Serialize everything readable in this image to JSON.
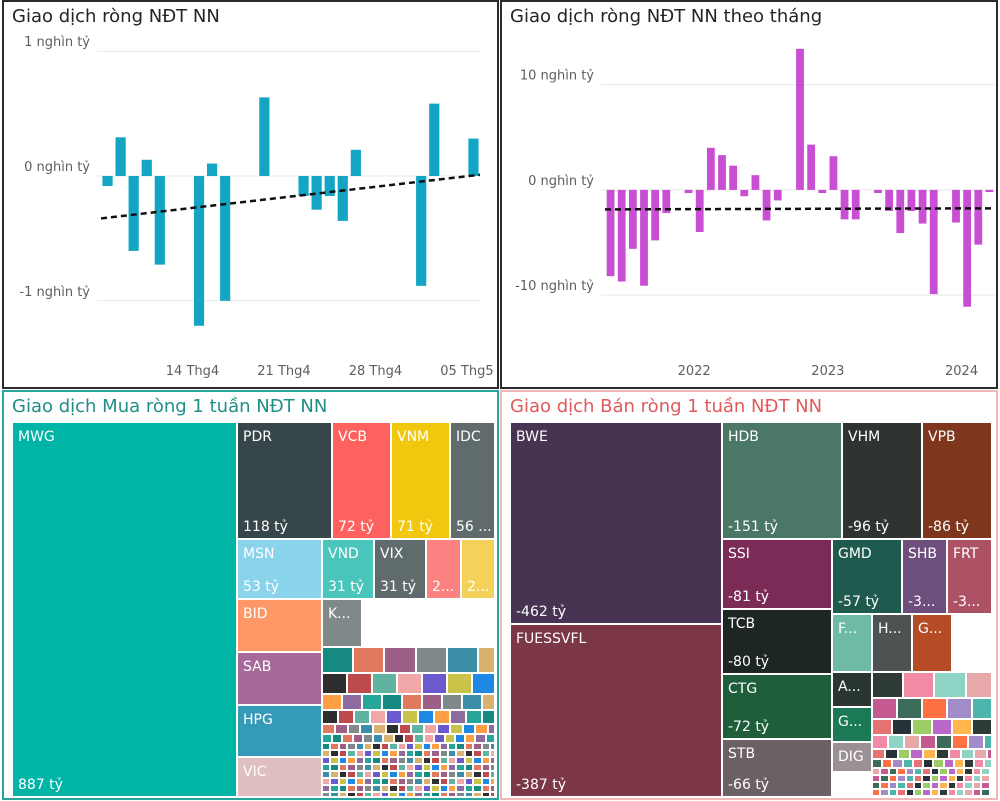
{
  "chart_data": [
    {
      "id": "daily",
      "type": "bar",
      "title": "Giao dịch ròng NĐT NN",
      "y_ticks": [
        {
          "value": 1000,
          "label": "1 nghìn tỷ"
        },
        {
          "value": 0,
          "label": "0 nghìn tỷ"
        },
        {
          "value": -1000,
          "label": "-1 nghìn tỷ"
        }
      ],
      "x_ticks": [
        {
          "index": 6.5,
          "label": "14 Thg4"
        },
        {
          "index": 13.5,
          "label": "21 Thg4"
        },
        {
          "index": 20.5,
          "label": "28 Thg4"
        },
        {
          "index": 27.5,
          "label": "05 Thg5"
        }
      ],
      "ylim": [
        -1250,
        1250
      ],
      "values": [
        -80,
        310,
        -600,
        130,
        -710,
        0,
        0,
        -1200,
        100,
        -1000,
        0,
        0,
        630,
        0,
        0,
        -160,
        -270,
        -160,
        -360,
        210,
        0,
        0,
        0,
        0,
        -880,
        580,
        0,
        0,
        300
      ],
      "color": "#14a5c4",
      "trend": {
        "start": -340,
        "end": 10
      }
    },
    {
      "id": "monthly",
      "type": "bar",
      "title": "Giao dịch ròng NĐT NN theo tháng",
      "y_ticks": [
        {
          "value": 10000,
          "label": "10 nghìn tỷ"
        },
        {
          "value": 0,
          "label": "0 nghìn tỷ"
        },
        {
          "value": -10000,
          "label": "-10 nghìn tỷ"
        }
      ],
      "x_ticks": [
        {
          "index": 7.5,
          "label": "2022"
        },
        {
          "index": 19.5,
          "label": "2023"
        },
        {
          "index": 31.5,
          "label": "2024"
        }
      ],
      "ylim": [
        -13500,
        15000
      ],
      "values": [
        -8200,
        -8700,
        -5600,
        -9100,
        -4800,
        -2200,
        0,
        -300,
        -4000,
        4000,
        3300,
        2300,
        -600,
        1400,
        -2900,
        -1000,
        0,
        13400,
        4300,
        -300,
        3200,
        -2800,
        -2800,
        0,
        -300,
        -2000,
        -4100,
        -2000,
        -3200,
        -9900,
        0,
        -3100,
        -11100,
        -5200,
        -200
      ],
      "color": "#c84fd4",
      "trend": {
        "start": -1850,
        "end": -1750
      }
    },
    {
      "id": "buy",
      "type": "treemap",
      "title": "Giao dịch Mua ròng 1 tuần NĐT NN",
      "tiles": [
        {
          "name": "MWG",
          "value": "887 tỷ",
          "color": "#00b4a6"
        },
        {
          "name": "PDR",
          "value": "118 tỷ",
          "color": "#374649"
        },
        {
          "name": "VCB",
          "value": "72 tỷ",
          "color": "#fd625e"
        },
        {
          "name": "VNM",
          "value": "71 tỷ",
          "color": "#f2c80f"
        },
        {
          "name": "IDC",
          "value": "56 ...",
          "color": "#5f6b6d"
        },
        {
          "name": "MSN",
          "value": "53 tỷ",
          "color": "#8ad4eb"
        },
        {
          "name": "VND",
          "value": "31 tỷ",
          "color": "#4ac5bb"
        },
        {
          "name": "VIX",
          "value": "31 tỷ",
          "color": "#5f6b6d"
        },
        {
          "name": "",
          "value": "2...",
          "color": "#fb8281"
        },
        {
          "name": "",
          "value": "2...",
          "color": "#f4d25a"
        },
        {
          "name": "BID",
          "value": "",
          "color": "#fe9666"
        },
        {
          "name": "K...",
          "value": "",
          "color": "#7f898a"
        },
        {
          "name": "SAB",
          "value": "",
          "color": "#a66999"
        },
        {
          "name": "HPG",
          "value": "",
          "color": "#3599b8"
        },
        {
          "name": "VIC",
          "value": "",
          "color": "#dfbfbf"
        }
      ]
    },
    {
      "id": "sell",
      "type": "treemap",
      "title": "Giao dịch Bán ròng 1 tuần NĐT NN",
      "tiles": [
        {
          "name": "BWE",
          "value": "-462 tỷ",
          "color": "#473352"
        },
        {
          "name": "FUESSVFL",
          "value": "-387 tỷ",
          "color": "#7b3746"
        },
        {
          "name": "HDB",
          "value": "-151 tỷ",
          "color": "#4a7766"
        },
        {
          "name": "VHM",
          "value": "-96 tỷ",
          "color": "#2f3433"
        },
        {
          "name": "VPB",
          "value": "-86 tỷ",
          "color": "#7e361c"
        },
        {
          "name": "SSI",
          "value": "-81 tỷ",
          "color": "#7c2b57"
        },
        {
          "name": "GMD",
          "value": "-57 tỷ",
          "color": "#1e5a4d"
        },
        {
          "name": "SHB",
          "value": "-3...",
          "color": "#6e4e7d"
        },
        {
          "name": "FRT",
          "value": "-3...",
          "color": "#ad5265"
        },
        {
          "name": "TCB",
          "value": "-80 tỷ",
          "color": "#1e2624"
        },
        {
          "name": "F...",
          "value": "",
          "color": "#6fb9a7"
        },
        {
          "name": "H...",
          "value": "",
          "color": "#4d5352"
        },
        {
          "name": "G...",
          "value": "",
          "color": "#b64c25"
        },
        {
          "name": "CTG",
          "value": "-72 tỷ",
          "color": "#1e5e3a"
        },
        {
          "name": "A...",
          "value": "",
          "color": "#293631"
        },
        {
          "name": "G...",
          "value": "",
          "color": "#1b7a55"
        },
        {
          "name": "STB",
          "value": "-66 tỷ",
          "color": "#6b6066"
        },
        {
          "name": "DIG",
          "value": "",
          "color": "#9b9095"
        }
      ]
    }
  ]
}
